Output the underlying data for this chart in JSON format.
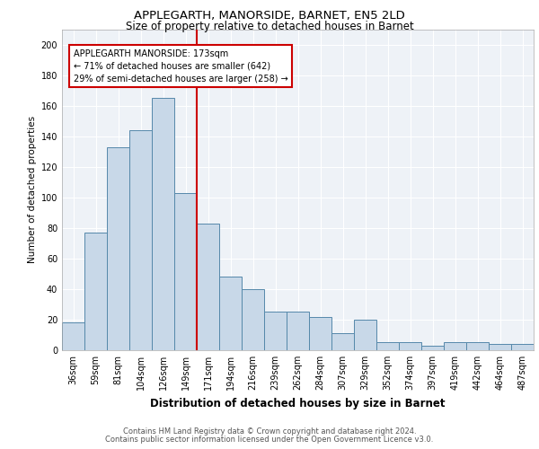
{
  "title1": "APPLEGARTH, MANORSIDE, BARNET, EN5 2LD",
  "title2": "Size of property relative to detached houses in Barnet",
  "xlabel": "Distribution of detached houses by size in Barnet",
  "ylabel": "Number of detached properties",
  "categories": [
    "36sqm",
    "59sqm",
    "81sqm",
    "104sqm",
    "126sqm",
    "149sqm",
    "171sqm",
    "194sqm",
    "216sqm",
    "239sqm",
    "262sqm",
    "284sqm",
    "307sqm",
    "329sqm",
    "352sqm",
    "374sqm",
    "397sqm",
    "419sqm",
    "442sqm",
    "464sqm",
    "487sqm"
  ],
  "values": [
    18,
    77,
    133,
    144,
    165,
    103,
    83,
    48,
    40,
    25,
    25,
    22,
    11,
    20,
    5,
    5,
    3,
    5,
    5,
    4,
    4
  ],
  "bar_color": "#c8d8e8",
  "bar_edge_color": "#5588aa",
  "vline_color": "#cc0000",
  "annotation_line1": "APPLEGARTH MANORSIDE: 173sqm",
  "annotation_line2": "← 71% of detached houses are smaller (642)",
  "annotation_line3": "29% of semi-detached houses are larger (258) →",
  "annotation_box_edge": "#cc0000",
  "background_color": "#eef2f7",
  "grid_color": "#ffffff",
  "ylim": [
    0,
    210
  ],
  "yticks": [
    0,
    20,
    40,
    60,
    80,
    100,
    120,
    140,
    160,
    180,
    200
  ],
  "footer1": "Contains HM Land Registry data © Crown copyright and database right 2024.",
  "footer2": "Contains public sector information licensed under the Open Government Licence v3.0."
}
